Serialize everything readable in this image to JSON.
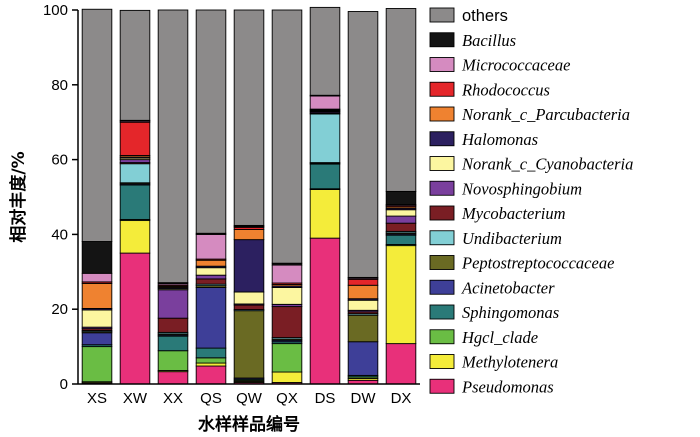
{
  "chart_data": {
    "type": "bar",
    "stacked": true,
    "xlabel": "水样样品编号",
    "ylabel": "相对丰度/%",
    "ylim": [
      0,
      100
    ],
    "yticks": [
      0,
      20,
      40,
      60,
      80,
      100
    ],
    "legend_position": "right",
    "categories": [
      "XS",
      "XW",
      "XX",
      "QS",
      "QW",
      "QX",
      "DS",
      "DW",
      "DX"
    ],
    "series": [
      {
        "name": "Pseudomonas",
        "color": "#e8307a",
        "values": [
          0.3,
          35.0,
          3.3,
          4.8,
          0.4,
          0.4,
          39.0,
          1.0,
          10.8
        ]
      },
      {
        "name": "Methylotenera",
        "color": "#f4ec3a",
        "values": [
          0.3,
          8.7,
          0.3,
          0.8,
          0.3,
          2.8,
          13.0,
          0.5,
          26.2
        ]
      },
      {
        "name": "Hgcl_clade",
        "color": "#6abd44",
        "values": [
          9.4,
          0.3,
          5.3,
          1.4,
          0.3,
          7.6,
          0.2,
          0.4,
          0.3
        ]
      },
      {
        "name": "Sphingomonas",
        "color": "#2a7a78",
        "values": [
          0.5,
          9.2,
          3.9,
          2.6,
          0.3,
          0.5,
          6.6,
          0.4,
          2.5
        ]
      },
      {
        "name": "Acinetobacter",
        "color": "#3e3f98",
        "values": [
          3.2,
          0.3,
          0.3,
          16.2,
          0.3,
          0.4,
          0.2,
          9.0,
          0.3
        ]
      },
      {
        "name": "Peptostreptococcaceae",
        "color": "#6a6a23",
        "values": [
          0.3,
          0.3,
          0.3,
          0.5,
          18.0,
          0.3,
          0.2,
          7.1,
          0.3
        ]
      },
      {
        "name": "Undibacterium",
        "color": "#82cfd5",
        "values": [
          0.3,
          5.1,
          0.4,
          0.4,
          0.3,
          0.4,
          13.0,
          0.4,
          0.4
        ]
      },
      {
        "name": "Mycobacterium",
        "color": "#7a1e24",
        "values": [
          0.5,
          0.3,
          3.8,
          1.4,
          1.2,
          8.3,
          0.2,
          0.5,
          2.2
        ]
      },
      {
        "name": "Novosphingobium",
        "color": "#7a3f9d",
        "values": [
          0.4,
          0.8,
          7.6,
          1.0,
          0.3,
          0.6,
          0.3,
          0.4,
          1.9
        ]
      },
      {
        "name": "Norank_c_Cyanobacteria",
        "color": "#fcf6a0",
        "values": [
          4.6,
          0.4,
          0.3,
          2.0,
          3.2,
          4.5,
          0.2,
          2.7,
          1.7
        ]
      },
      {
        "name": "Halomonas",
        "color": "#2c2060",
        "values": [
          0.4,
          0.3,
          0.3,
          0.4,
          14.0,
          0.4,
          0.2,
          0.4,
          0.4
        ]
      },
      {
        "name": "Norank_c_Parcubacteria",
        "color": "#ef8230",
        "values": [
          6.7,
          0.4,
          0.3,
          1.6,
          2.7,
          0.4,
          0.2,
          3.6,
          0.4
        ]
      },
      {
        "name": "Rhodococcus",
        "color": "#e4262a",
        "values": [
          0.4,
          8.9,
          0.3,
          0.3,
          0.6,
          0.4,
          0.2,
          1.6,
          0.3
        ]
      },
      {
        "name": "Micrococcaceae",
        "color": "#d58bc0",
        "values": [
          2.3,
          0.3,
          0.4,
          6.6,
          0.2,
          4.8,
          3.5,
          0.3,
          0.3
        ]
      },
      {
        "name": "Bacillus",
        "color": "#141414",
        "values": [
          8.5,
          0.2,
          0.3,
          0.3,
          0.3,
          0.5,
          0.2,
          0.2,
          3.5
        ]
      },
      {
        "name": "others",
        "color": "#8c8a8a",
        "values": [
          62.1,
          29.4,
          72.9,
          59.7,
          57.6,
          67.7,
          23.5,
          71.1,
          48.9
        ]
      }
    ]
  }
}
